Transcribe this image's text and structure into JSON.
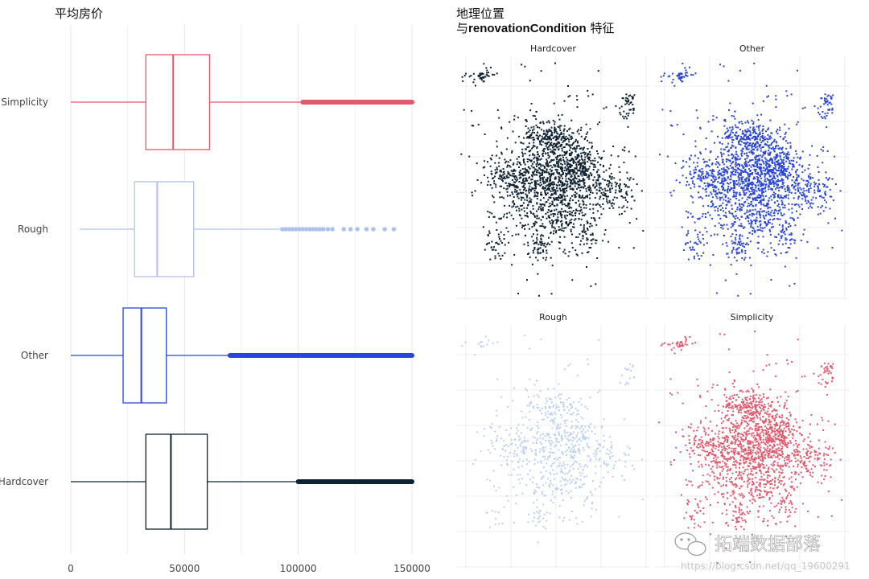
{
  "chart_data": [
    {
      "type": "boxplot",
      "title": "平均房价",
      "orientation": "horizontal",
      "xlim": [
        0,
        155000
      ],
      "xticks": [
        0,
        50000,
        100000,
        150000
      ],
      "xtick_labels": [
        "0",
        "50000",
        "100000",
        "150000"
      ],
      "grid": true,
      "series": [
        {
          "name": "Simplicity",
          "color": "#e05a6d",
          "whisker_low": 0,
          "q1": 33000,
          "median": 45000,
          "q3": 61000,
          "whisker_high": 102000,
          "outlier_band": [
            102000,
            150000
          ],
          "outliers": []
        },
        {
          "name": "Rough",
          "color": "#aec2f0",
          "whisker_low": 4000,
          "q1": 28000,
          "median": 38000,
          "q3": 54000,
          "whisker_high": 92000,
          "outlier_band": null,
          "outliers": [
            93000,
            94500,
            96000,
            97500,
            99000,
            100500,
            102000,
            103500,
            105000,
            106500,
            108000,
            109500,
            111000,
            113000,
            115000,
            120000,
            123000,
            126000,
            130000,
            133000,
            138000,
            142000
          ]
        },
        {
          "name": "Other",
          "color": "#2a46d4",
          "whisker_low": 0,
          "q1": 23000,
          "median": 31000,
          "q3": 42000,
          "whisker_high": 70000,
          "outlier_band": [
            70000,
            150000
          ],
          "outliers": []
        },
        {
          "name": "Hardcover",
          "color": "#0e2233",
          "whisker_low": 0,
          "q1": 33000,
          "median": 44000,
          "q3": 60000,
          "whisker_high": 100000,
          "outlier_band": [
            100000,
            150000
          ],
          "outliers": []
        }
      ]
    },
    {
      "type": "scatter",
      "title_line1": "地理位置",
      "title_line2_prefix": "与",
      "title_line2_bold": "renovationCondition",
      "title_line2_suffix": " 特征",
      "facets": [
        {
          "name": "Hardcover",
          "color": "#0e2233",
          "density": 1.0
        },
        {
          "name": "Other",
          "color": "#2a46d4",
          "density": 1.0
        },
        {
          "name": "Rough",
          "color": "#bcd0f3",
          "density": 0.35
        },
        {
          "name": "Simplicity",
          "color": "#e05a6d",
          "density": 0.85
        }
      ]
    }
  ],
  "watermark": {
    "name": "拓端数据部落",
    "url": "https://blog.csdn.net/qq_19600291"
  }
}
